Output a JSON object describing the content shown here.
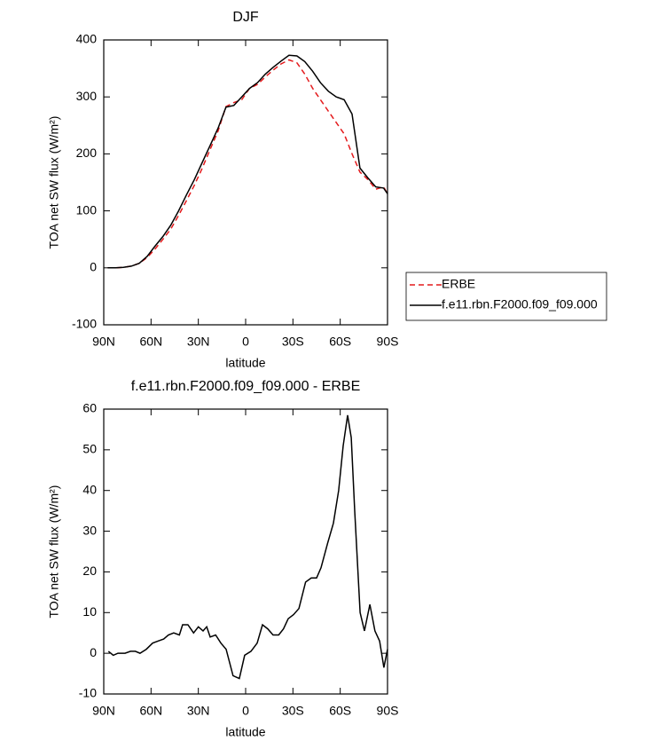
{
  "chart_data": [
    {
      "type": "line",
      "title": "DJF",
      "xlabel": "latitude",
      "ylabel": "TOA net SW flux (W/m²)",
      "x": [
        87.5,
        82.5,
        77.5,
        72.5,
        67.5,
        62.5,
        57.5,
        52.5,
        47.5,
        42.5,
        37.5,
        32.5,
        27.5,
        22.5,
        17.5,
        12.5,
        7.5,
        2.5,
        -2.5,
        -7.5,
        -12.5,
        -17.5,
        -22.5,
        -27.5,
        -32.5,
        -37.5,
        -42.5,
        -47.5,
        -52.5,
        -57.5,
        -62.5,
        -67.5,
        -72.5,
        -77.5,
        -82.5,
        -87.5,
        -90
      ],
      "series": [
        {
          "name": "ERBE",
          "color": "#e41a1c",
          "dash": true,
          "values": [
            0,
            0,
            1,
            3,
            8,
            18,
            33,
            50,
            68,
            92,
            118,
            145,
            175,
            208,
            240,
            283,
            290,
            295,
            315,
            322,
            335,
            347,
            358,
            365,
            360,
            340,
            315,
            295,
            275,
            255,
            235,
            200,
            168,
            155,
            138,
            142,
            130
          ]
        },
        {
          "name": "f.e11.rbn.F2000.f09_f09.000",
          "color": "#000000",
          "dash": false,
          "values": [
            0,
            0,
            1,
            3,
            8,
            20,
            38,
            55,
            75,
            100,
            128,
            155,
            185,
            215,
            245,
            282,
            285,
            300,
            315,
            325,
            340,
            352,
            363,
            373,
            372,
            362,
            345,
            325,
            310,
            300,
            295,
            270,
            175,
            158,
            142,
            140,
            130
          ]
        }
      ],
      "xlim": [
        90,
        -90
      ],
      "xticks": [
        {
          "value": 90,
          "label": "90N"
        },
        {
          "value": 60,
          "label": "60N"
        },
        {
          "value": 30,
          "label": "30N"
        },
        0,
        {
          "value": -30,
          "label": "30S"
        },
        {
          "value": -60,
          "label": "60S"
        },
        {
          "value": -90,
          "label": "90S"
        }
      ],
      "ylim": [
        -100,
        400
      ],
      "yticks": [
        -100,
        0,
        100,
        200,
        300,
        400
      ],
      "legend": "right"
    },
    {
      "type": "line",
      "title": "f.e11.rbn.F2000.f09_f09.000 - ERBE",
      "xlabel": "latitude",
      "ylabel": "TOA net SW flux (W/m²)",
      "x": [
        87,
        84,
        81,
        76.5,
        73,
        70,
        67,
        63,
        59,
        55.7,
        52,
        49,
        45.6,
        42,
        40,
        36.6,
        33,
        30,
        27,
        24.7,
        22.5,
        19,
        15.7,
        12.4,
        8,
        4,
        0.6,
        -3.4,
        -7.3,
        -10.7,
        -14,
        -17.4,
        -21,
        -24,
        -27,
        -30.4,
        -33.8,
        -38,
        -41.6,
        -45,
        -47.8,
        -52,
        -55.7,
        -59,
        -61.9,
        -64.7,
        -67,
        -69.2,
        -72.6,
        -75.4,
        -78.8,
        -82,
        -85,
        -87.7,
        -90
      ],
      "color": "#000000",
      "values": [
        0.5,
        -0.5,
        0,
        0,
        0.5,
        0.5,
        0,
        1,
        2.5,
        3,
        3.5,
        4.5,
        5,
        4.5,
        7,
        7,
        5,
        6.5,
        5.5,
        6.5,
        4,
        4.5,
        2.5,
        1,
        -5.5,
        -6.2,
        -0.5,
        0.5,
        2.5,
        7,
        6,
        4.5,
        4.5,
        6,
        8.5,
        9.5,
        11,
        17.5,
        18.5,
        18.5,
        21,
        27,
        32,
        40,
        51,
        58.5,
        53,
        35,
        10,
        5.5,
        12,
        5.5,
        3,
        -3.5,
        1
      ],
      "xlim": [
        90,
        -90
      ],
      "xticks": [
        {
          "value": 90,
          "label": "90N"
        },
        {
          "value": 60,
          "label": "60N"
        },
        {
          "value": 30,
          "label": "30N"
        },
        0,
        {
          "value": -30,
          "label": "30S"
        },
        {
          "value": -60,
          "label": "60S"
        },
        {
          "value": -90,
          "label": "90S"
        }
      ],
      "ylim": [
        -10,
        60
      ],
      "yticks": [
        -10,
        0,
        10,
        20,
        30,
        40,
        50,
        60
      ]
    }
  ]
}
